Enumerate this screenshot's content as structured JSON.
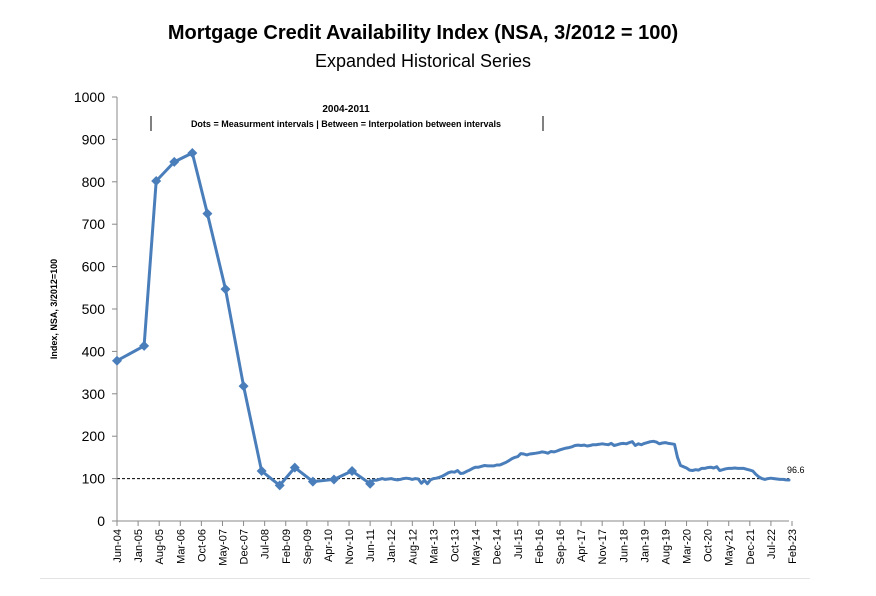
{
  "chart_data": {
    "type": "line",
    "title": "Mortgage Credit Availability Index (NSA, 3/2012 = 100)",
    "subtitle": "Expanded Historical Series",
    "ylabel": "Index, NSA, 3/2012=100",
    "xlabel": "",
    "ylim": [
      0,
      1000
    ],
    "yticks": [
      0,
      100,
      200,
      300,
      400,
      500,
      600,
      700,
      800,
      900,
      1000
    ],
    "grid": false,
    "reference_line": 100,
    "x_tick_labels": [
      "Jun-04",
      "Jan-05",
      "Aug-05",
      "Mar-06",
      "Oct-06",
      "May-07",
      "Dec-07",
      "Jul-08",
      "Feb-09",
      "Sep-09",
      "Apr-10",
      "Nov-10",
      "Jun-11",
      "Jan-12",
      "Aug-12",
      "Mar-13",
      "Oct-13",
      "May-14",
      "Dec-14",
      "Jul-15",
      "Feb-16",
      "Sep-16",
      "Apr-17",
      "Nov-17",
      "Jun-18",
      "Jan-19",
      "Aug-19",
      "Mar-20",
      "Oct-20",
      "May-21",
      "Dec-21",
      "Jul-22",
      "Feb-23"
    ],
    "annotation": {
      "heading": "2004-2011",
      "text": "Dots = Measurment intervals  |  Between = Interpolation between intervals"
    },
    "end_label": "96.6",
    "series": [
      {
        "color": "#4a7ebb",
        "measurement_points": [
          [
            "Jun-04",
            378
          ],
          [
            "Mar-05",
            413
          ],
          [
            "Jul-05",
            802
          ],
          [
            "Jan-06",
            847
          ],
          [
            "Jul-06",
            868
          ],
          [
            "Dec-06",
            725
          ],
          [
            "Jun-07",
            547
          ],
          [
            "Dec-07",
            318
          ],
          [
            "Jun-08",
            118
          ],
          [
            "Dec-08",
            84
          ],
          [
            "May-09",
            126
          ],
          [
            "Nov-09",
            93
          ],
          [
            "Jun-10",
            98
          ],
          [
            "Dec-10",
            118
          ],
          [
            "Jun-11",
            88
          ]
        ],
        "monthly_from": "Jul-11",
        "monthly_values": [
          96,
          96,
          98,
          100,
          98,
          99,
          100,
          98,
          97,
          98,
          100,
          101,
          100,
          98,
          100,
          99,
          89,
          96,
          88,
          97,
          100,
          101,
          103,
          106,
          110,
          114,
          116,
          115,
          119,
          112,
          113,
          117,
          120,
          124,
          127,
          127,
          129,
          131,
          130,
          130,
          130,
          132,
          132,
          135,
          138,
          142,
          147,
          150,
          152,
          159,
          158,
          156,
          158,
          159,
          160,
          161,
          163,
          162,
          160,
          164,
          163,
          165,
          168,
          170,
          172,
          173,
          175,
          178,
          179,
          178,
          179,
          177,
          178,
          180,
          180,
          181,
          182,
          181,
          180,
          183,
          178,
          180,
          182,
          183,
          182,
          185,
          187,
          178,
          182,
          180,
          183,
          185,
          187,
          188,
          186,
          182,
          184,
          185,
          183,
          182,
          181,
          150,
          131,
          128,
          125,
          120,
          119,
          121,
          120,
          124,
          124,
          126,
          127,
          125,
          128,
          119,
          121,
          123,
          124,
          124,
          125,
          124,
          124,
          124,
          122,
          120,
          118,
          110,
          104,
          100,
          98,
          100,
          101,
          100,
          99,
          98,
          98,
          97,
          96.6
        ]
      }
    ]
  }
}
